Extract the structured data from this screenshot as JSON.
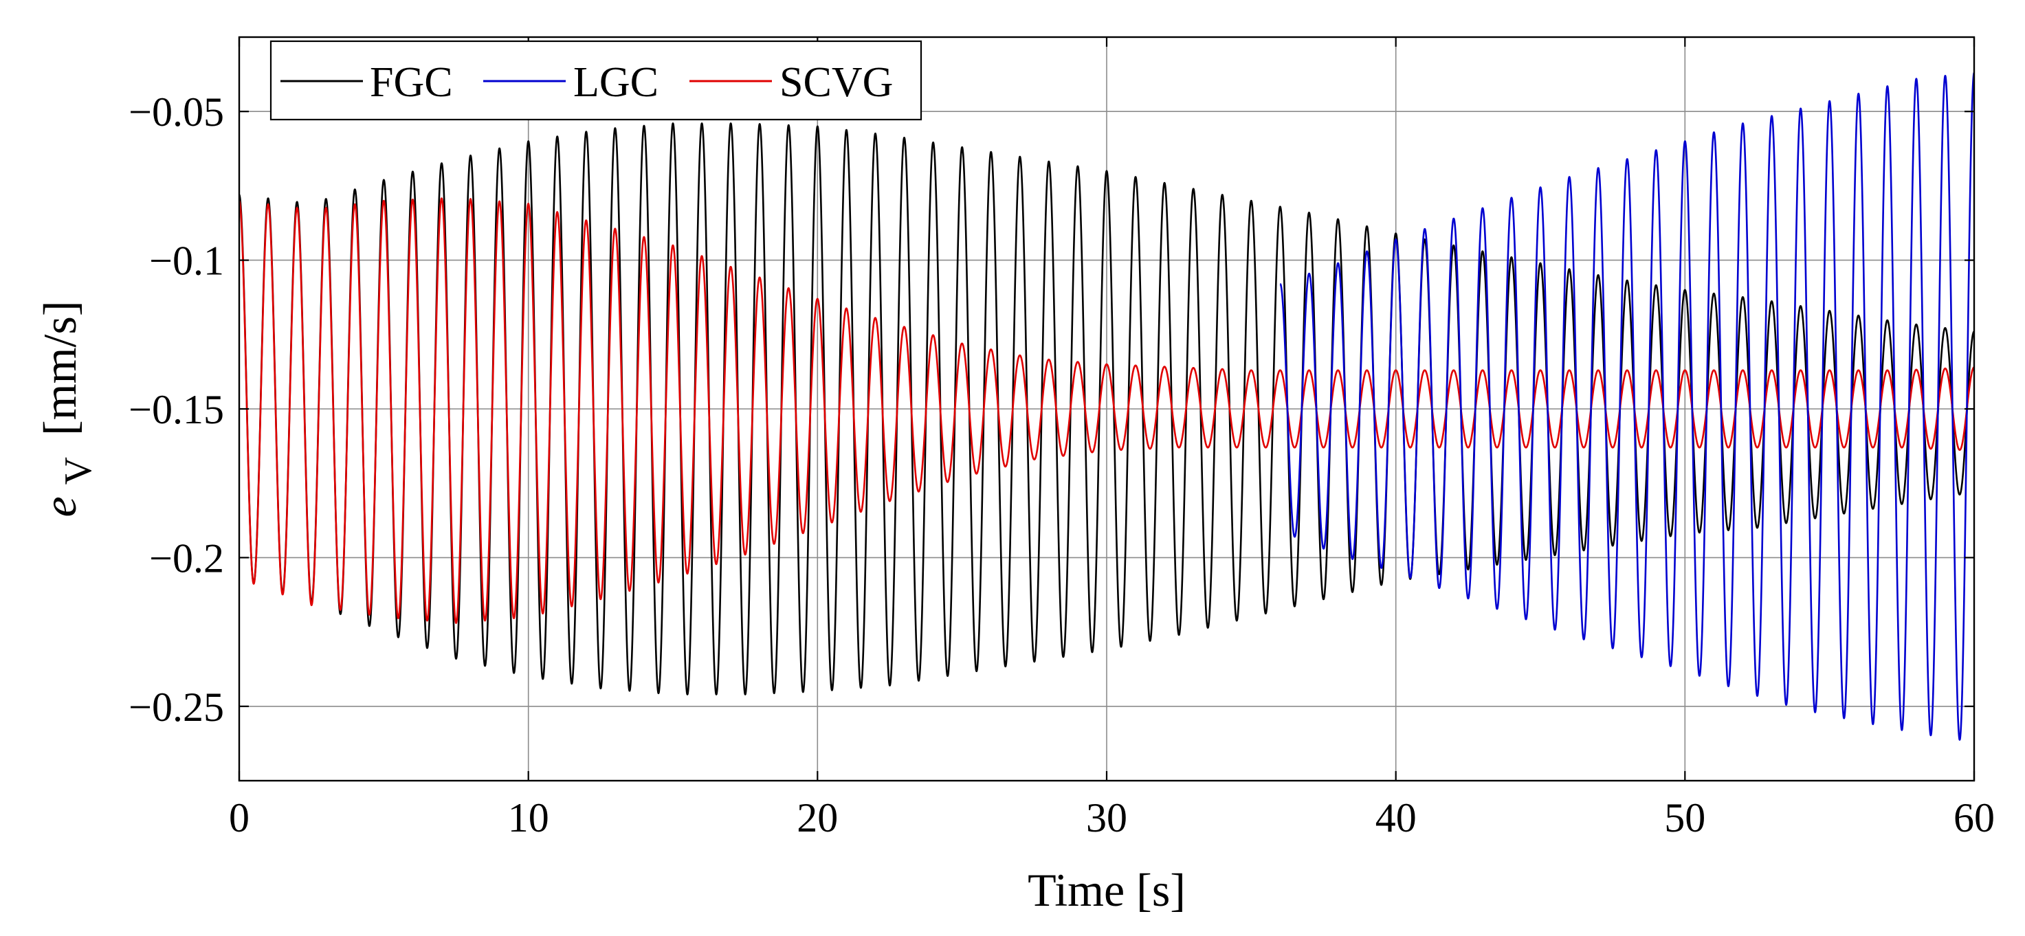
{
  "chart_data": {
    "type": "line",
    "title": "",
    "xlabel": "Time [s]",
    "ylabel": {
      "symbol": "e",
      "subscript": "V",
      "unit": "[mm/s]"
    },
    "xlim": [
      0,
      60
    ],
    "ylim": [
      -0.275,
      -0.025
    ],
    "xticks": [
      0,
      10,
      20,
      30,
      40,
      50,
      60
    ],
    "xtick_labels": [
      "0",
      "10",
      "20",
      "30",
      "40",
      "50",
      "60"
    ],
    "yticks": [
      -0.25,
      -0.2,
      -0.15,
      -0.1,
      -0.05
    ],
    "ytick_labels": [
      "−0.25",
      "−0.2",
      "−0.15",
      "−0.1",
      "−0.05"
    ],
    "grid": true,
    "legend_position": "top-left",
    "oscillation_frequency_hz": 1.0,
    "series": [
      {
        "name": "FGC",
        "color": "#000000",
        "t_start": 0.0,
        "t_end": 60.0,
        "envelope_t": [
          0,
          2.5,
          5,
          7.5,
          10,
          12.5,
          15,
          17.5,
          20,
          22.5,
          25,
          27.5,
          30,
          32.5,
          35,
          37.5,
          40,
          42.5,
          45,
          47.5,
          50,
          52.5,
          55,
          57.5,
          60
        ],
        "max": [
          -0.078,
          -0.081,
          -0.073,
          -0.066,
          -0.06,
          -0.056,
          -0.054,
          -0.054,
          -0.055,
          -0.058,
          -0.062,
          -0.066,
          -0.07,
          -0.075,
          -0.08,
          -0.085,
          -0.091,
          -0.096,
          -0.101,
          -0.106,
          -0.11,
          -0.113,
          -0.117,
          -0.121,
          -0.124
        ],
        "min": [
          -0.207,
          -0.215,
          -0.225,
          -0.234,
          -0.24,
          -0.244,
          -0.246,
          -0.246,
          -0.245,
          -0.243,
          -0.239,
          -0.235,
          -0.231,
          -0.226,
          -0.22,
          -0.214,
          -0.208,
          -0.204,
          -0.2,
          -0.196,
          -0.192,
          -0.19,
          -0.186,
          -0.182,
          -0.178
        ]
      },
      {
        "name": "LGC",
        "color": "#0000d0",
        "t_start": 36.0,
        "t_end": 60.0,
        "envelope_t": [
          36,
          38,
          40,
          42,
          44,
          46,
          48,
          50,
          52,
          54,
          56,
          58,
          60
        ],
        "max": [
          -0.108,
          -0.101,
          -0.093,
          -0.086,
          -0.079,
          -0.072,
          -0.066,
          -0.06,
          -0.054,
          -0.049,
          -0.044,
          -0.039,
          -0.037
        ],
        "min": [
          -0.191,
          -0.199,
          -0.205,
          -0.212,
          -0.219,
          -0.226,
          -0.232,
          -0.238,
          -0.245,
          -0.251,
          -0.255,
          -0.259,
          -0.262
        ]
      },
      {
        "name": "SCVG",
        "color": "#e00000",
        "t_start": 0.0,
        "t_end": 60.0,
        "envelope_t": [
          0,
          2.5,
          5,
          7.5,
          10,
          12.5,
          15,
          17.5,
          20,
          22.5,
          25,
          27.5,
          30,
          32.5,
          35,
          37.5,
          40,
          42.5,
          45,
          47.5,
          50,
          52.5,
          55,
          57.5,
          60
        ],
        "max": [
          -0.08,
          -0.083,
          -0.08,
          -0.079,
          -0.081,
          -0.088,
          -0.095,
          -0.104,
          -0.113,
          -0.121,
          -0.128,
          -0.133,
          -0.135,
          -0.136,
          -0.137,
          -0.137,
          -0.137,
          -0.137,
          -0.137,
          -0.137,
          -0.137,
          -0.137,
          -0.137,
          -0.137,
          -0.136
        ],
        "min": [
          -0.207,
          -0.216,
          -0.22,
          -0.222,
          -0.22,
          -0.214,
          -0.207,
          -0.199,
          -0.19,
          -0.181,
          -0.173,
          -0.167,
          -0.164,
          -0.163,
          -0.163,
          -0.163,
          -0.163,
          -0.163,
          -0.163,
          -0.163,
          -0.163,
          -0.163,
          -0.163,
          -0.163,
          -0.164
        ]
      }
    ]
  }
}
